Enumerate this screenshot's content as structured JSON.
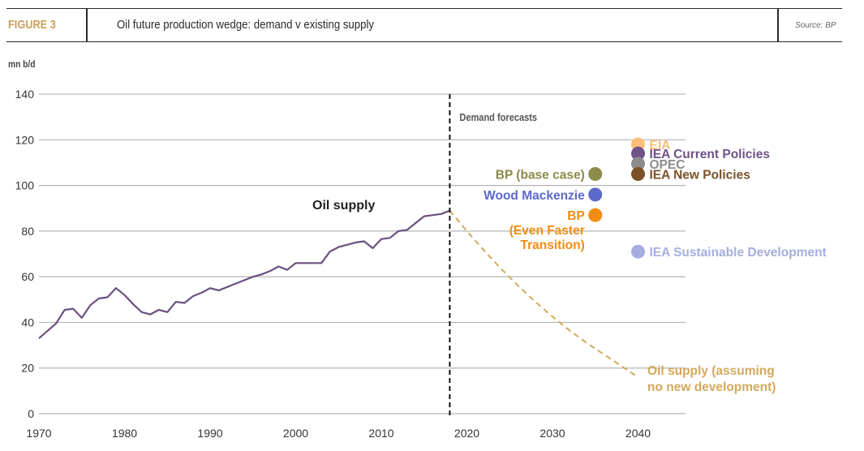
{
  "header": {
    "figure_label": "FIGURE 3",
    "title": "Oil future production wedge: demand v existing supply",
    "source": "Source: BP"
  },
  "chart_data": {
    "type": "line",
    "title": "Oil future production wedge: demand v existing supply",
    "ylabel": "mn b/d",
    "xlabel": "",
    "xlim": [
      1970,
      2046
    ],
    "ylim": [
      0,
      140
    ],
    "x_ticks": [
      1970,
      1980,
      1990,
      2000,
      2010,
      2020,
      2030,
      2040
    ],
    "x_tick_labels": [
      "1970",
      "1980",
      "1990",
      "2000",
      "2010",
      "2020",
      "2030",
      "2040"
    ],
    "y_ticks": [
      0,
      20,
      40,
      60,
      80,
      100,
      120,
      140
    ],
    "y_tick_labels": [
      "0",
      "20",
      "40",
      "60",
      "80",
      "100",
      "120",
      "140"
    ],
    "grid": "horizontal",
    "divider": {
      "x": 2018,
      "label": "Demand forecasts",
      "style": "dashed"
    },
    "series": [
      {
        "name": "Oil supply",
        "label": "Oil supply",
        "color": "#6b5080",
        "style": "solid",
        "x": [
          1970,
          1972,
          1973,
          1974,
          1975,
          1976,
          1977,
          1978,
          1979,
          1980,
          1981,
          1982,
          1983,
          1984,
          1985,
          1986,
          1987,
          1988,
          1989,
          1990,
          1991,
          1992,
          1993,
          1994,
          1995,
          1996,
          1997,
          1998,
          1999,
          2000,
          2001,
          2002,
          2003,
          2004,
          2005,
          2006,
          2007,
          2008,
          2009,
          2010,
          2011,
          2012,
          2013,
          2014,
          2015,
          2016,
          2017,
          2018
        ],
        "values": [
          33,
          39.5,
          45.5,
          46,
          42,
          47.5,
          50.5,
          51,
          55,
          52,
          48,
          44.5,
          43.5,
          45.5,
          44.5,
          49,
          48.5,
          51.5,
          53,
          55,
          54,
          55.5,
          57,
          58.5,
          60,
          61,
          62.5,
          64.5,
          63,
          66,
          66,
          66,
          66,
          71,
          73,
          74,
          75,
          75.5,
          72.5,
          76.5,
          77,
          80,
          80.5,
          83.5,
          86.5,
          87,
          87.5,
          89
        ]
      },
      {
        "name": "Oil supply (assuming no new development)",
        "label_lines": [
          "Oil supply (assuming",
          "no new development)"
        ],
        "color": "#d4a95c",
        "style": "dashed",
        "x": [
          2018,
          2020,
          2022,
          2024,
          2026,
          2028,
          2030,
          2032,
          2034,
          2036,
          2038,
          2040
        ],
        "values": [
          89,
          80,
          71.5,
          63.5,
          56,
          49,
          42.5,
          36.5,
          31,
          26,
          21,
          16
        ]
      }
    ],
    "forecasts": [
      {
        "name": "BP (base case)",
        "label_lines": [
          "BP (base case)"
        ],
        "year": 2035,
        "value": 105,
        "color": "#8b8b4a",
        "label_side": "left"
      },
      {
        "name": "Wood Mackenzie",
        "label_lines": [
          "Wood Mackenzie"
        ],
        "year": 2035,
        "value": 96,
        "color": "#5b6acb",
        "label_side": "left"
      },
      {
        "name": "BP (Even Faster Transition)",
        "label_lines": [
          "BP",
          "(Even Faster",
          "Transition)"
        ],
        "year": 2035,
        "value": 87,
        "color": "#f28c10",
        "label_side": "left"
      },
      {
        "name": "EIA",
        "label_lines": [
          "EIA"
        ],
        "year": 2040,
        "value": 118,
        "color": "#fbbf7a",
        "label_side": "right"
      },
      {
        "name": "IEA Current Policies",
        "label_lines": [
          "IEA Current Policies"
        ],
        "year": 2040,
        "value": 114,
        "color": "#6f5289",
        "label_side": "right"
      },
      {
        "name": "OPEC",
        "label_lines": [
          "OPEC"
        ],
        "year": 2040,
        "value": 109.5,
        "color": "#8c8c8c",
        "label_side": "right"
      },
      {
        "name": "IEA New Policies",
        "label_lines": [
          "IEA New Policies"
        ],
        "year": 2040,
        "value": 105,
        "color": "#7b5228",
        "label_side": "right"
      },
      {
        "name": "IEA Sustainable Development",
        "label_lines": [
          "IEA Sustainable Development"
        ],
        "year": 2040,
        "value": 71,
        "color": "#a7addf",
        "label_side": "right"
      }
    ]
  }
}
